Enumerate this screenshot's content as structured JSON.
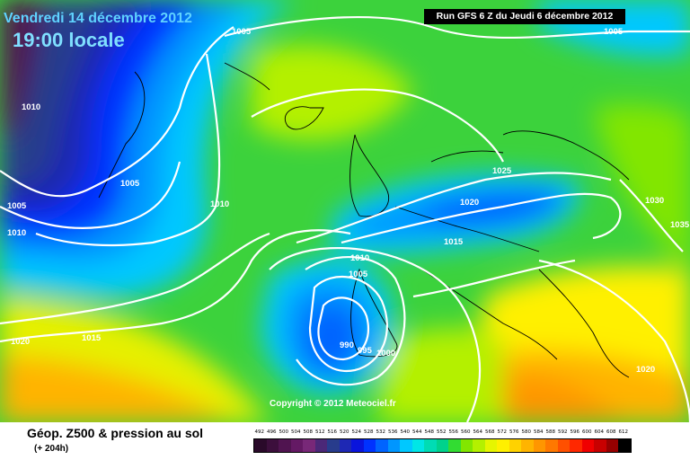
{
  "header": {
    "date": "Vendredi 14 décembre 2012",
    "time": "19:00 locale",
    "run": "Run GFS 6 Z du Jeudi 6 décembre 2012"
  },
  "map": {
    "copyright": "Copyright © 2012 Meteociel.fr",
    "isobar_labels": [
      "1005",
      "1005",
      "1010",
      "1005",
      "1005",
      "1010",
      "1010",
      "1025",
      "1020",
      "1030",
      "1035",
      "1015",
      "1010",
      "1005",
      "990",
      "995",
      "1000",
      "1020",
      "1015",
      "1020"
    ]
  },
  "legend": {
    "title": "Géop. Z500 & pression au sol",
    "subtitle": "(+ 204h)",
    "scale": [
      {
        "value": "492",
        "color": "#2a0a2a"
      },
      {
        "value": "496",
        "color": "#3c0f3c"
      },
      {
        "value": "500",
        "color": "#501450"
      },
      {
        "value": "504",
        "color": "#641964"
      },
      {
        "value": "508",
        "color": "#782878"
      },
      {
        "value": "512",
        "color": "#4b2878"
      },
      {
        "value": "516",
        "color": "#283c8c"
      },
      {
        "value": "520",
        "color": "#1e28b4"
      },
      {
        "value": "524",
        "color": "#0a14dc"
      },
      {
        "value": "528",
        "color": "#0032ff"
      },
      {
        "value": "532",
        "color": "#0064ff"
      },
      {
        "value": "536",
        "color": "#0096ff"
      },
      {
        "value": "540",
        "color": "#00c8ff"
      },
      {
        "value": "544",
        "color": "#00e6e6"
      },
      {
        "value": "548",
        "color": "#00dcb4"
      },
      {
        "value": "552",
        "color": "#00d28c"
      },
      {
        "value": "556",
        "color": "#32dc32"
      },
      {
        "value": "560",
        "color": "#82e600"
      },
      {
        "value": "564",
        "color": "#b4f000"
      },
      {
        "value": "568",
        "color": "#e6f500"
      },
      {
        "value": "572",
        "color": "#fff000"
      },
      {
        "value": "576",
        "color": "#ffd200"
      },
      {
        "value": "580",
        "color": "#ffb400"
      },
      {
        "value": "584",
        "color": "#ff9600"
      },
      {
        "value": "588",
        "color": "#ff7800"
      },
      {
        "value": "592",
        "color": "#ff5000"
      },
      {
        "value": "596",
        "color": "#ff2800"
      },
      {
        "value": "600",
        "color": "#f00000"
      },
      {
        "value": "604",
        "color": "#c80000"
      },
      {
        "value": "608",
        "color": "#960000"
      },
      {
        "value": "612",
        "color": "#000000"
      }
    ]
  }
}
